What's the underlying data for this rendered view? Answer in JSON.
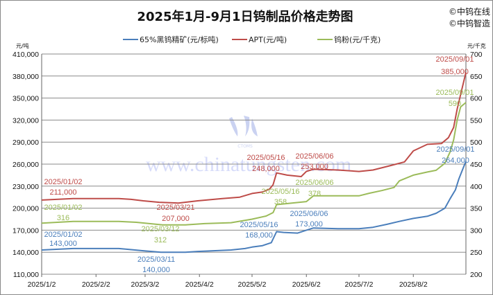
{
  "copyright": [
    "©中钨在线",
    "©中钨智造"
  ],
  "watermark": {
    "logo_text": "CTOMS",
    "url_text": "www.chinatungsten.com"
  },
  "chart_data": {
    "type": "line",
    "title": "2025年1月-9月1日钨制品价格走势图",
    "y_left_unit": "元/吨",
    "y_right_unit": "元/千克",
    "y_left_range": [
      110000,
      410000
    ],
    "y_left_ticks": [
      "110,000",
      "140,000",
      "170,000",
      "200,000",
      "230,000",
      "260,000",
      "290,000",
      "320,000",
      "350,000",
      "380,000",
      "410,000"
    ],
    "y_right_range": [
      200,
      700
    ],
    "y_right_ticks": [
      "200",
      "250",
      "300",
      "350",
      "400",
      "450",
      "500",
      "550",
      "600",
      "650",
      "700"
    ],
    "x_range": [
      "2025-01-02",
      "2025-09-01"
    ],
    "x_ticks": [
      "2025/1/2",
      "2025/2/2",
      "2025/3/2",
      "2025/4/2",
      "2025/5/2",
      "2025/6/2",
      "2025/7/2",
      "2025/8/2"
    ],
    "x_tick_dates": [
      "2025-01-02",
      "2025-02-02",
      "2025-03-02",
      "2025-04-02",
      "2025-05-02",
      "2025-06-02",
      "2025-07-02",
      "2025-08-02"
    ],
    "grid": "horizontal",
    "legend_position": "top",
    "series": [
      {
        "name": "65%黑钨精矿(元/标吨)",
        "axis": "left",
        "color": "#4a7ebb",
        "points": [
          [
            "2025-01-02",
            143000
          ],
          [
            "2025-01-20",
            145000
          ],
          [
            "2025-02-15",
            145000
          ],
          [
            "2025-02-20",
            144000
          ],
          [
            "2025-03-01",
            142000
          ],
          [
            "2025-03-11",
            140000
          ],
          [
            "2025-03-25",
            140000
          ],
          [
            "2025-04-01",
            141000
          ],
          [
            "2025-04-10",
            142000
          ],
          [
            "2025-04-20",
            143000
          ],
          [
            "2025-04-28",
            145000
          ],
          [
            "2025-05-02",
            147000
          ],
          [
            "2025-05-08",
            149000
          ],
          [
            "2025-05-13",
            153000
          ],
          [
            "2025-05-16",
            168000
          ],
          [
            "2025-05-20",
            167000
          ],
          [
            "2025-05-28",
            166000
          ],
          [
            "2025-06-02",
            170000
          ],
          [
            "2025-06-06",
            173000
          ],
          [
            "2025-06-20",
            172000
          ],
          [
            "2025-07-02",
            172000
          ],
          [
            "2025-07-10",
            174000
          ],
          [
            "2025-07-18",
            178000
          ],
          [
            "2025-07-25",
            182000
          ],
          [
            "2025-08-02",
            186000
          ],
          [
            "2025-08-10",
            189000
          ],
          [
            "2025-08-15",
            193000
          ],
          [
            "2025-08-20",
            200000
          ],
          [
            "2025-08-23",
            213000
          ],
          [
            "2025-08-26",
            225000
          ],
          [
            "2025-08-28",
            240000
          ],
          [
            "2025-09-01",
            264000
          ]
        ]
      },
      {
        "name": "APT(元/吨)",
        "axis": "left",
        "color": "#be4b48",
        "points": [
          [
            "2025-01-02",
            211000
          ],
          [
            "2025-01-20",
            213000
          ],
          [
            "2025-02-15",
            213000
          ],
          [
            "2025-02-22",
            212000
          ],
          [
            "2025-03-01",
            210000
          ],
          [
            "2025-03-10",
            208000
          ],
          [
            "2025-03-21",
            207000
          ],
          [
            "2025-04-01",
            210000
          ],
          [
            "2025-04-15",
            213000
          ],
          [
            "2025-04-25",
            215000
          ],
          [
            "2025-05-02",
            220000
          ],
          [
            "2025-05-08",
            222000
          ],
          [
            "2025-05-12",
            226000
          ],
          [
            "2025-05-14",
            232000
          ],
          [
            "2025-05-16",
            248000
          ],
          [
            "2025-05-22",
            245000
          ],
          [
            "2025-05-30",
            243000
          ],
          [
            "2025-06-02",
            250000
          ],
          [
            "2025-06-06",
            253000
          ],
          [
            "2025-06-20",
            252000
          ],
          [
            "2025-07-02",
            250000
          ],
          [
            "2025-07-10",
            252000
          ],
          [
            "2025-07-20",
            258000
          ],
          [
            "2025-07-28",
            263000
          ],
          [
            "2025-08-02",
            278000
          ],
          [
            "2025-08-10",
            287000
          ],
          [
            "2025-08-18",
            288000
          ],
          [
            "2025-08-22",
            296000
          ],
          [
            "2025-08-25",
            310000
          ],
          [
            "2025-08-27",
            335000
          ],
          [
            "2025-08-29",
            355000
          ],
          [
            "2025-09-01",
            385000
          ]
        ]
      },
      {
        "name": "钨粉(元/千克)",
        "axis": "right",
        "color": "#9bbb59",
        "points": [
          [
            "2025-01-02",
            316
          ],
          [
            "2025-01-20",
            320
          ],
          [
            "2025-02-15",
            320
          ],
          [
            "2025-02-25",
            318
          ],
          [
            "2025-03-12",
            312
          ],
          [
            "2025-03-25",
            312
          ],
          [
            "2025-04-05",
            315
          ],
          [
            "2025-04-20",
            317
          ],
          [
            "2025-05-02",
            325
          ],
          [
            "2025-05-10",
            332
          ],
          [
            "2025-05-14",
            340
          ],
          [
            "2025-05-16",
            358
          ],
          [
            "2025-06-02",
            365
          ],
          [
            "2025-06-06",
            378
          ],
          [
            "2025-07-02",
            378
          ],
          [
            "2025-07-08",
            384
          ],
          [
            "2025-07-15",
            390
          ],
          [
            "2025-07-22",
            397
          ],
          [
            "2025-07-25",
            412
          ],
          [
            "2025-08-02",
            425
          ],
          [
            "2025-08-10",
            432
          ],
          [
            "2025-08-15",
            436
          ],
          [
            "2025-08-20",
            452
          ],
          [
            "2025-08-23",
            478
          ],
          [
            "2025-08-25",
            505
          ],
          [
            "2025-08-27",
            550
          ],
          [
            "2025-08-29",
            580
          ],
          [
            "2025-09-01",
            590
          ]
        ]
      }
    ],
    "annotations": [
      {
        "series": 0,
        "date_label": "2025/01/02",
        "value_label": "143,000"
      },
      {
        "series": 0,
        "date_label": "2025/03/11",
        "value_label": "140,000"
      },
      {
        "series": 0,
        "date_label": "2025/05/16",
        "value_label": "168,000"
      },
      {
        "series": 0,
        "date_label": "2025/06/06",
        "value_label": "173,000"
      },
      {
        "series": 0,
        "date_label": "2025/09/01",
        "value_label": "264,000"
      },
      {
        "series": 1,
        "date_label": "2025/01/02",
        "value_label": "211,000"
      },
      {
        "series": 1,
        "date_label": "2025/03/21",
        "value_label": "207,000"
      },
      {
        "series": 1,
        "date_label": "2025/05/16",
        "value_label": "248,000"
      },
      {
        "series": 1,
        "date_label": "2025/06/06",
        "value_label": "253,000"
      },
      {
        "series": 1,
        "date_label": "2025/09/01",
        "value_label": "385,000"
      },
      {
        "series": 2,
        "date_label": "2025/01/02",
        "value_label": "316"
      },
      {
        "series": 2,
        "date_label": "2025/03/12",
        "value_label": "312"
      },
      {
        "series": 2,
        "date_label": "2025/05/16",
        "value_label": "358"
      },
      {
        "series": 2,
        "date_label": "2025/06/06",
        "value_label": "378"
      },
      {
        "series": 2,
        "date_label": "2025/09/01",
        "value_label": "590"
      }
    ]
  }
}
